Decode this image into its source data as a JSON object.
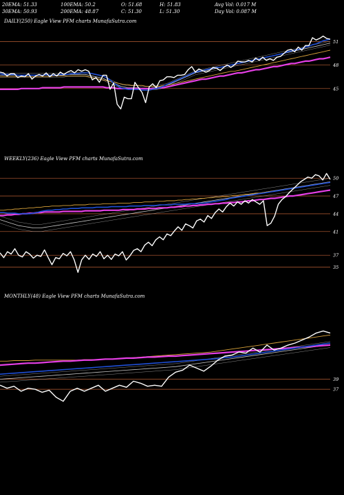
{
  "header": {
    "ema20": "20EMA: 51.33",
    "ema30": "30EMA: 50.93",
    "ema100": "100EMA: 50.2",
    "ema200": "200EMA: 48.87",
    "open": "O: 51.68",
    "close": "C: 51.30",
    "high": "H: 51.83",
    "low": "L: 51.30",
    "avgvol": "Avg Vol: 0.017 M",
    "dayvol": "Day Vol: 0.087 M"
  },
  "colors": {
    "price": "#ffffff",
    "ema_short": "#1f4fd6",
    "ema_long": "#e63fe6",
    "ma_gold": "#d9a23a",
    "ma_grey": "#c8c8c8",
    "level_line": "#a0522d"
  },
  "chart_data": [
    {
      "type": "line",
      "title": "DAILY(250) Eagle View PFM charts MunafaSutra.com",
      "ylim": [
        40.5,
        53.5
      ],
      "levels": [
        51,
        48,
        45
      ],
      "tick_labels": [
        "51",
        "48",
        "45"
      ],
      "price": [
        47.1,
        47.0,
        46.6,
        46.9,
        46.9,
        46.4,
        46.6,
        46.5,
        46.9,
        46.2,
        46.6,
        46.8,
        46.6,
        47.0,
        46.5,
        46.9,
        46.6,
        47.1,
        46.8,
        47.1,
        47.3,
        47.0,
        47.4,
        47.2,
        47.4,
        47.2,
        46.1,
        46.4,
        45.8,
        46.7,
        46.7,
        44.9,
        45.7,
        43.0,
        42.4,
        43.9,
        43.7,
        43.7,
        45.8,
        45.1,
        44.5,
        43.2,
        45.2,
        45.6,
        45.1,
        46.0,
        46.1,
        46.5,
        46.5,
        46.4,
        46.7,
        46.7,
        46.8,
        47.4,
        47.8,
        47.1,
        47.5,
        47.3,
        47.1,
        47.3,
        47.7,
        47.6,
        47.3,
        47.7,
        48.0,
        47.7,
        48.0,
        48.5,
        48.4,
        48.4,
        48.6,
        48.4,
        48.9,
        48.6,
        49.0,
        48.6,
        48.8,
        48.6,
        49.0,
        49.1,
        49.5,
        49.9,
        50.0,
        49.7,
        50.3,
        49.9,
        50.5,
        50.5,
        51.5,
        51.2,
        51.4,
        51.7,
        51.4,
        51.3
      ],
      "ema_short": [
        46.9,
        46.8,
        46.8,
        46.8,
        46.8,
        46.7,
        46.7,
        46.7,
        46.7,
        46.7,
        46.7,
        46.7,
        46.7,
        46.8,
        46.7,
        46.7,
        46.7,
        46.8,
        46.8,
        46.8,
        46.9,
        46.9,
        46.9,
        47.0,
        47.0,
        47.0,
        46.9,
        46.8,
        46.7,
        46.6,
        46.4,
        46.1,
        45.7,
        45.4,
        45.1,
        45.0,
        44.9,
        44.9,
        44.9,
        44.9,
        44.8,
        44.8,
        44.8,
        44.9,
        45.0,
        45.1,
        45.3,
        45.5,
        45.7,
        45.9,
        46.1,
        46.3,
        46.5,
        46.7,
        46.9,
        47.1,
        47.2,
        47.3,
        47.4,
        47.5,
        47.6,
        47.7,
        47.7,
        47.8,
        47.9,
        48.0,
        48.1,
        48.2,
        48.3,
        48.4,
        48.5,
        48.6,
        48.7,
        48.8,
        48.9,
        49.0,
        49.1,
        49.2,
        49.3,
        49.4,
        49.5,
        49.7,
        49.8,
        49.9,
        50.0,
        50.1,
        50.3,
        50.4,
        50.6,
        50.7,
        50.9,
        51.1,
        51.2,
        51.3
      ],
      "ema_long": [
        44.9,
        44.9,
        44.9,
        44.9,
        44.9,
        44.9,
        45.0,
        45.0,
        45.0,
        45.0,
        45.0,
        45.0,
        45.1,
        45.1,
        45.1,
        45.1,
        45.1,
        45.1,
        45.2,
        45.2,
        45.2,
        45.2,
        45.2,
        45.2,
        45.2,
        45.2,
        45.2,
        45.2,
        45.2,
        45.2,
        45.1,
        45.1,
        45.1,
        45.0,
        45.0,
        45.0,
        45.0,
        45.0,
        45.0,
        45.0,
        45.0,
        45.0,
        45.0,
        45.0,
        45.0,
        45.1,
        45.1,
        45.2,
        45.3,
        45.4,
        45.5,
        45.6,
        45.7,
        45.8,
        45.9,
        46.0,
        46.1,
        46.2,
        46.2,
        46.3,
        46.4,
        46.5,
        46.6,
        46.6,
        46.7,
        46.8,
        46.9,
        47.0,
        47.0,
        47.1,
        47.2,
        47.3,
        47.4,
        47.4,
        47.5,
        47.6,
        47.7,
        47.8,
        47.8,
        47.9,
        48.0,
        48.1,
        48.2,
        48.2,
        48.3,
        48.4,
        48.5,
        48.5,
        48.6,
        48.7,
        48.8,
        48.8,
        48.9,
        49.0
      ],
      "ma_gold": [
        46.5,
        46.5,
        46.5,
        46.5,
        46.5,
        46.5,
        46.5,
        46.5,
        46.5,
        46.5,
        46.5,
        46.5,
        46.5,
        46.5,
        46.5,
        46.6,
        46.6,
        46.6,
        46.6,
        46.6,
        46.6,
        46.6,
        46.6,
        46.6,
        46.6,
        46.5,
        46.4,
        46.3,
        46.2,
        46.1,
        46.0,
        45.9,
        45.8,
        45.7,
        45.6,
        45.5,
        45.5,
        45.4,
        45.4,
        45.4,
        45.4,
        45.3,
        45.3,
        45.3,
        45.3,
        45.3,
        45.4,
        45.4,
        45.5,
        45.6,
        45.7,
        45.8,
        45.9,
        46.0,
        46.1,
        46.2,
        46.3,
        46.4,
        46.5,
        46.6,
        46.7,
        46.8,
        46.9,
        47.0,
        47.1,
        47.2,
        47.2,
        47.3,
        47.4,
        47.5,
        47.6,
        47.7,
        47.8,
        47.9,
        48.0,
        48.1,
        48.2,
        48.3,
        48.4,
        48.5,
        48.6,
        48.7,
        48.8,
        48.9,
        49.0,
        49.1,
        49.2,
        49.3,
        49.4,
        49.5,
        49.6,
        49.7,
        49.8,
        49.9
      ],
      "ma_grey": [
        46.7,
        46.7,
        46.7,
        46.7,
        46.7,
        46.7,
        46.7,
        46.7,
        46.7,
        46.7,
        46.7,
        46.7,
        46.7,
        46.7,
        46.7,
        46.7,
        46.7,
        46.7,
        46.7,
        46.8,
        46.8,
        46.8,
        46.8,
        46.8,
        46.8,
        46.7,
        46.6,
        46.5,
        46.4,
        46.3,
        46.1,
        45.9,
        45.7,
        45.5,
        45.3,
        45.2,
        45.1,
        45.1,
        45.1,
        45.1,
        45.0,
        45.0,
        45.0,
        45.1,
        45.1,
        45.2,
        45.3,
        45.4,
        45.6,
        45.8,
        46.0,
        46.2,
        46.4,
        46.6,
        46.8,
        47.0,
        47.1,
        47.2,
        47.3,
        47.4,
        47.5,
        47.6,
        47.7,
        47.8,
        47.9,
        48.0,
        48.1,
        48.2,
        48.3,
        48.4,
        48.5,
        48.6,
        48.7,
        48.8,
        48.9,
        49.0,
        49.1,
        49.2,
        49.3,
        49.4,
        49.5,
        49.6,
        49.7,
        49.8,
        49.9,
        50.0,
        50.1,
        50.2,
        50.3,
        50.4,
        50.5,
        50.6,
        50.7,
        50.8
      ]
    },
    {
      "type": "line",
      "title": "WEEKLY(236) Eagle View PFM charts MunafaSutra.com",
      "ylim": [
        32.5,
        52
      ],
      "levels": [
        50,
        47,
        44,
        41,
        37,
        35
      ],
      "tick_labels": [
        "50",
        "47",
        "44",
        "41",
        "37",
        "35"
      ],
      "price": [
        37.4,
        36.6,
        37.6,
        37.2,
        38.1,
        37.0,
        36.7,
        37.6,
        37.2,
        36.5,
        37.0,
        36.8,
        37.9,
        36.6,
        35.4,
        36.6,
        36.4,
        37.3,
        36.9,
        37.6,
        36.2,
        34.1,
        36.2,
        37.0,
        36.3,
        37.2,
        36.8,
        37.6,
        36.4,
        37.0,
        36.3,
        37.2,
        36.9,
        37.6,
        36.2,
        36.9,
        37.8,
        38.1,
        37.6,
        38.7,
        39.2,
        38.6,
        39.6,
        40.1,
        39.6,
        40.6,
        40.3,
        41.1,
        41.8,
        41.2,
        42.3,
        42.0,
        41.6,
        42.8,
        43.1,
        42.6,
        43.7,
        43.2,
        44.2,
        44.8,
        44.3,
        45.2,
        45.8,
        45.3,
        46.0,
        45.6,
        46.2,
        45.8,
        46.4,
        46.0,
        45.6,
        46.2,
        42.0,
        42.4,
        43.6,
        45.6,
        46.4,
        46.9,
        47.6,
        48.2,
        48.8,
        49.4,
        49.8,
        50.2,
        50.0,
        50.6,
        50.4,
        49.7,
        50.8,
        49.8
      ],
      "ema_short": [
        44.2,
        44.2,
        44.1,
        44.1,
        44.1,
        44.0,
        44.0,
        44.0,
        44.0,
        44.1,
        44.2,
        44.4,
        44.5,
        44.6,
        44.6,
        44.7,
        44.7,
        44.8,
        44.8,
        44.9,
        44.9,
        44.9,
        45.0,
        45.0,
        45.0,
        45.0,
        45.1,
        45.1,
        45.1,
        45.1,
        45.2,
        45.2,
        45.2,
        45.2,
        45.2,
        45.3,
        45.3,
        45.3,
        45.3,
        45.4,
        45.4,
        45.4,
        45.4,
        45.5,
        45.5,
        45.5,
        45.5,
        45.6,
        45.6,
        45.6,
        45.6,
        45.7,
        45.7,
        45.7,
        45.8,
        45.8,
        45.9,
        46.0,
        46.1,
        46.2,
        46.3,
        46.4,
        46.6,
        46.7,
        46.8,
        46.9,
        47.0,
        47.1,
        47.2,
        47.3,
        47.4,
        47.5,
        47.6,
        47.7,
        47.8,
        47.9,
        48.0,
        48.1,
        48.2,
        48.3,
        48.4,
        48.5,
        48.6,
        48.7,
        48.8,
        48.9,
        49.0,
        49.1,
        49.2,
        49.3
      ],
      "ema_long": [
        43.7,
        43.7,
        43.8,
        43.8,
        43.9,
        43.9,
        44.0,
        44.0,
        44.1,
        44.1,
        44.2,
        44.2,
        44.3,
        44.3,
        44.3,
        44.3,
        44.3,
        44.4,
        44.4,
        44.4,
        44.4,
        44.4,
        44.4,
        44.5,
        44.5,
        44.5,
        44.5,
        44.5,
        44.6,
        44.6,
        44.6,
        44.6,
        44.6,
        44.7,
        44.7,
        44.7,
        44.7,
        44.8,
        44.8,
        44.8,
        44.9,
        44.9,
        44.9,
        45.0,
        45.0,
        45.0,
        45.1,
        45.1,
        45.2,
        45.2,
        45.3,
        45.3,
        45.4,
        45.4,
        45.5,
        45.5,
        45.6,
        45.6,
        45.7,
        45.7,
        45.8,
        45.8,
        45.9,
        45.9,
        46.0,
        46.0,
        46.1,
        46.2,
        46.2,
        46.3,
        46.4,
        46.4,
        46.5,
        46.6,
        46.6,
        46.7,
        46.8,
        46.9,
        47.0,
        47.0,
        47.1,
        47.2,
        47.3,
        47.4,
        47.5,
        47.6,
        47.7,
        47.8,
        47.9,
        48.0
      ],
      "ma_gold": [
        44.6,
        44.6,
        44.7,
        44.7,
        44.8,
        44.8,
        44.9,
        44.9,
        45.0,
        45.0,
        45.1,
        45.1,
        45.2,
        45.2,
        45.3,
        45.3,
        45.3,
        45.4,
        45.4,
        45.4,
        45.5,
        45.5,
        45.5,
        45.5,
        45.6,
        45.6,
        45.6,
        45.6,
        45.7,
        45.7,
        45.7,
        45.7,
        45.8,
        45.8,
        45.8,
        45.8,
        45.9,
        45.9,
        45.9,
        46.0,
        46.0,
        46.0,
        46.1,
        46.1,
        46.1,
        46.2,
        46.2,
        46.2,
        46.3,
        46.3,
        46.4,
        46.4,
        46.5,
        46.5,
        46.6,
        46.6,
        46.7,
        46.7,
        46.8,
        46.8,
        46.9,
        46.9,
        47.0,
        47.1,
        47.1,
        47.2,
        47.3,
        47.3,
        47.4,
        47.5,
        47.5,
        47.6,
        47.7,
        47.8,
        47.8,
        47.9,
        48.0,
        48.1,
        48.2,
        48.3,
        48.4,
        48.5,
        48.6,
        48.7,
        48.8,
        48.9,
        49.0,
        49.1,
        49.2,
        49.3
      ],
      "ma_grey": [
        43.0,
        42.8,
        42.6,
        42.4,
        42.2,
        42.0,
        41.9,
        41.8,
        41.7,
        41.6,
        41.6,
        41.6,
        41.7,
        41.8,
        41.9,
        42.0,
        42.1,
        42.2,
        42.3,
        42.4,
        42.5,
        42.6,
        42.7,
        42.8,
        42.9,
        43.0,
        43.1,
        43.2,
        43.3,
        43.4,
        43.5,
        43.6,
        43.7,
        43.8,
        43.9,
        44.0,
        44.1,
        44.2,
        44.3,
        44.4,
        44.5,
        44.6,
        44.7,
        44.8,
        44.9,
        45.0,
        45.1,
        45.2,
        45.3,
        45.4,
        45.5,
        45.6,
        45.7,
        45.8,
        45.9,
        46.0,
        46.1,
        46.2,
        46.3,
        46.4,
        46.5,
        46.6,
        46.7,
        46.8,
        46.9,
        47.0,
        47.1,
        47.2,
        47.3,
        47.4,
        47.5,
        47.6,
        47.7,
        47.8,
        47.9,
        48.0,
        48.1,
        48.2,
        48.3,
        48.4,
        48.5,
        48.6,
        48.7,
        48.8,
        48.9,
        49.0,
        49.1,
        49.2,
        49.3,
        49.4
      ]
    },
    {
      "type": "line",
      "title": "MONTHLY(48) Eagle View PFM charts MunafaSutra.com",
      "ylim": [
        31,
        54
      ],
      "levels": [
        39,
        37
      ],
      "tick_labels": [
        "39",
        "37"
      ],
      "price": [
        37.8,
        37.2,
        37.6,
        36.6,
        37.2,
        37.0,
        36.4,
        36.8,
        35.4,
        34.6,
        36.6,
        37.2,
        36.6,
        37.2,
        37.8,
        36.6,
        37.2,
        37.8,
        37.4,
        38.6,
        38.2,
        37.6,
        37.8,
        37.6,
        39.4,
        40.4,
        40.8,
        41.8,
        41.2,
        40.6,
        41.6,
        42.8,
        43.6,
        43.8,
        44.4,
        44.2,
        45.2,
        44.4,
        45.8,
        44.8,
        45.2,
        45.8,
        46.2,
        46.8,
        47.4,
        48.2,
        48.6,
        48.2
      ],
      "ema_short": [
        40.0,
        40.1,
        40.2,
        40.3,
        40.4,
        40.5,
        40.6,
        40.7,
        40.8,
        40.9,
        41.0,
        41.1,
        41.2,
        41.3,
        41.4,
        41.5,
        41.6,
        41.7,
        41.8,
        41.9,
        42.0,
        42.1,
        42.2,
        42.3,
        42.4,
        42.5,
        42.6,
        42.7,
        42.8,
        42.9,
        43.0,
        43.1,
        43.3,
        43.4,
        43.6,
        43.8,
        44.0,
        44.2,
        44.4,
        44.6,
        44.8,
        45.0,
        45.2,
        45.4,
        45.6,
        45.8,
        46.0,
        46.2
      ],
      "ema_long": [
        41.8,
        41.9,
        42.0,
        42.1,
        42.2,
        42.2,
        42.3,
        42.4,
        42.5,
        42.6,
        42.6,
        42.7,
        42.8,
        42.8,
        42.9,
        43.0,
        43.0,
        43.1,
        43.2,
        43.2,
        43.3,
        43.4,
        43.4,
        43.5,
        43.6,
        43.6,
        43.7,
        43.8,
        43.9,
        44.0,
        44.1,
        44.2,
        44.3,
        44.4,
        44.5,
        44.6,
        44.7,
        44.8,
        44.9,
        45.0,
        45.1,
        45.2,
        45.3,
        45.4,
        45.5,
        45.6,
        45.7,
        45.8
      ],
      "ma_gold": [
        42.6,
        42.6,
        42.7,
        42.7,
        42.7,
        42.8,
        42.8,
        42.8,
        42.8,
        42.8,
        42.8,
        42.8,
        42.9,
        42.9,
        42.9,
        43.0,
        43.0,
        43.1,
        43.2,
        43.3,
        43.4,
        43.5,
        43.6,
        43.7,
        43.8,
        43.9,
        44.0,
        44.1,
        44.2,
        44.3,
        44.4,
        44.6,
        44.8,
        45.0,
        45.2,
        45.4,
        45.6,
        45.8,
        46.0,
        46.2,
        46.4,
        46.6,
        46.8,
        47.0,
        47.2,
        47.4,
        47.6,
        47.8
      ],
      "ma_grey": [
        39.0,
        39.1,
        39.2,
        39.3,
        39.4,
        39.5,
        39.6,
        39.7,
        39.8,
        39.9,
        40.0,
        40.1,
        40.2,
        40.3,
        40.4,
        40.5,
        40.6,
        40.7,
        40.8,
        40.9,
        41.0,
        41.1,
        41.2,
        41.3,
        41.4,
        41.5,
        41.7,
        41.9,
        42.1,
        42.3,
        42.5,
        42.7,
        42.9,
        43.1,
        43.3,
        43.5,
        43.7,
        43.9,
        44.1,
        44.3,
        44.5,
        44.7,
        44.9,
        45.1,
        45.3,
        45.5,
        45.7,
        45.9
      ]
    }
  ]
}
